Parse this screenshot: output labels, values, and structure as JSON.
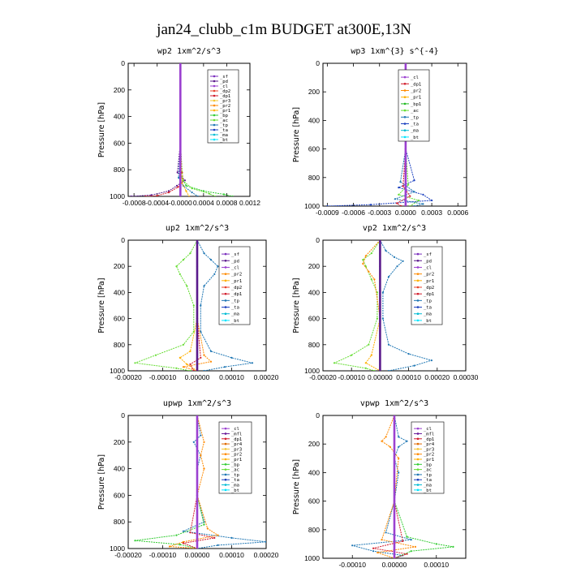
{
  "figure_title": "jan24_clubb_c1m  BUDGET at300E,13N",
  "colors": {
    "_sf": "#7b2fbe",
    "_pd": "#5a1a8c",
    "_cl": "#9b40d0",
    "_mfl": "#6a1b9a",
    "_dp1": "#d11a2a",
    "_dp2": "#e8402a",
    "_dp3": "#c62828",
    "_pr1": "#ffb000",
    "_pr2": "#ff8a00",
    "_pr3": "#f4c430",
    "_pr4": "#e06a00",
    "_bp": "#33cc33",
    "_bp1": "#22bb22",
    "_ac": "#66dd33",
    "_tp": "#1f77b4",
    "_ta": "#1a3fbf",
    "_ma": "#00bcd4",
    "_bt": "#00e5ff"
  },
  "chart_data": [
    {
      "type": "line",
      "title": "wp2  1xm^2/s^3",
      "ylabel": "Pressure [hPa]",
      "ylim": [
        1000,
        0
      ],
      "yticks": [
        0,
        200,
        400,
        600,
        800,
        1000
      ],
      "xlim": [
        -0.0009,
        0.0012
      ],
      "xticks": [
        -0.0008,
        -0.0004,
        0.0,
        0.0004,
        0.0008,
        0.0012
      ],
      "xticklabels": [
        "-0.0008",
        "-0.0004",
        "-0.0000",
        "0.0004",
        "0.0008",
        "0.0012"
      ],
      "legend": [
        "_sf",
        "_pd",
        "_cl",
        "_dp2",
        "_dp1",
        "_pr3",
        "_pr2",
        "_pr1",
        "_bp",
        "_ac",
        "_tp",
        "_ta",
        "_ma",
        "_bt"
      ],
      "legend_position": "top-right",
      "series": [
        {
          "name": "_pd",
          "p": [
            0,
            150,
            600,
            820,
            880,
            920,
            960,
            990,
            1000
          ],
          "v": [
            0,
            0,
            0,
            -5e-05,
            8e-05,
            -6e-05,
            -0.0002,
            -0.0005,
            -0.00085
          ]
        },
        {
          "name": "_dp1",
          "p": [
            0,
            600,
            820,
            880,
            930,
            970,
            995,
            1000
          ],
          "v": [
            0,
            0,
            3e-05,
            5e-05,
            -4e-05,
            -0.0002,
            -0.0004,
            -0.0006
          ]
        },
        {
          "name": "_bp",
          "p": [
            0,
            600,
            850,
            920,
            960,
            985,
            1000
          ],
          "v": [
            0,
            0,
            2e-05,
            0.0001,
            0.0004,
            0.00075,
            0.0009
          ]
        },
        {
          "name": "_ac",
          "p": [
            0,
            600,
            880,
            940,
            980,
            1000
          ],
          "v": [
            0,
            0,
            4e-05,
            0.0002,
            0.0005,
            0.0006
          ]
        },
        {
          "name": "_tp",
          "p": [
            0,
            600,
            860,
            920,
            970,
            1000
          ],
          "v": [
            0,
            0,
            -3e-05,
            5e-05,
            0.0002,
            0.0003
          ]
        },
        {
          "name": "_pr1",
          "p": [
            0,
            600,
            900,
            960,
            1000
          ],
          "v": [
            0,
            0,
            3e-05,
            0.0001,
            0.00015
          ]
        },
        {
          "name": "_cl",
          "p": [
            0,
            200,
            400,
            600,
            800,
            1000
          ],
          "v": [
            0,
            0,
            0,
            0,
            0,
            0
          ]
        }
      ]
    },
    {
      "type": "line",
      "title": "wp3  1xm^{3} s^{-4}",
      "ylabel": "Pressure [hPa]",
      "ylim": [
        1000,
        0
      ],
      "yticks": [
        0,
        200,
        400,
        600,
        800,
        1000
      ],
      "xlim": [
        -0.00095,
        0.0007
      ],
      "xticks": [
        -0.0009,
        -0.0006,
        -0.0003,
        0.0,
        0.0003,
        0.0006
      ],
      "xticklabels": [
        "-0.0009",
        "-0.0006",
        "-0.0003",
        "0.0000",
        "0.0003",
        "0.0006"
      ],
      "legend": [
        "_cl",
        "_dp1",
        "_pr2",
        "_pr1",
        "_bp1",
        "_ac",
        "_tp",
        "_ta",
        "_ma",
        "_bt"
      ],
      "legend_position": "top-right",
      "series": [
        {
          "name": "_ta",
          "p": [
            0,
            150,
            300,
            600,
            820,
            870,
            920,
            960,
            990,
            1000
          ],
          "v": [
            0,
            2e-05,
            -2e-05,
            0,
            0.0001,
            -8e-05,
            0.0002,
            0.0003,
            -0.0004,
            -0.0009
          ]
        },
        {
          "name": "_tp",
          "p": [
            0,
            600,
            830,
            900,
            950,
            985,
            1000
          ],
          "v": [
            0,
            0,
            -6e-05,
            0.0001,
            -0.00012,
            0.0002,
            0.0001
          ]
        },
        {
          "name": "_ac",
          "p": [
            0,
            600,
            850,
            920,
            960,
            1000
          ],
          "v": [
            0,
            0,
            3e-05,
            -8e-05,
            0.00015,
            5e-05
          ]
        },
        {
          "name": "_dp1",
          "p": [
            0,
            600,
            860,
            930,
            980,
            1000
          ],
          "v": [
            0,
            0,
            -3e-05,
            5e-05,
            -0.0001,
            -5e-05
          ]
        },
        {
          "name": "_cl",
          "p": [
            0,
            200,
            400,
            600,
            800,
            1000
          ],
          "v": [
            0,
            0,
            0,
            0,
            0,
            0
          ]
        }
      ]
    },
    {
      "type": "line",
      "title": "up2  1xm^2/s^3",
      "ylabel": "Pressure [hPa]",
      "ylim": [
        1000,
        0
      ],
      "yticks": [
        0,
        200,
        400,
        600,
        800,
        1000
      ],
      "xlim": [
        -0.0002,
        0.0002
      ],
      "xticks": [
        -0.0002,
        -0.0001,
        0.0,
        0.0001,
        0.0002
      ],
      "xticklabels": [
        "-0.00020",
        "-0.00010",
        "0.00000",
        "0.00010",
        "0.00020"
      ],
      "legend": [
        "_sf",
        "_pd",
        "_cl",
        "_pr2",
        "_pr1",
        "_dp2",
        "_dp1",
        "_tp",
        "_ta",
        "_ma",
        "_bt"
      ],
      "legend_position": "top-right",
      "series": [
        {
          "name": "_tp",
          "p": [
            0,
            100,
            150,
            200,
            260,
            350,
            500,
            700,
            850,
            900,
            940,
            970,
            1000
          ],
          "v": [
            0,
            2e-05,
            4e-05,
            6e-05,
            5e-05,
            2e-05,
            1e-05,
            1e-05,
            4e-05,
            0.0001,
            0.00016,
            8e-05,
            2e-05
          ]
        },
        {
          "name": "_ac",
          "p": [
            0,
            100,
            150,
            200,
            260,
            350,
            500,
            700,
            800,
            880,
            940,
            980,
            1000
          ],
          "v": [
            0,
            -2e-05,
            -4e-05,
            -6e-05,
            -5e-05,
            -3e-05,
            -1e-05,
            -1e-05,
            -4e-05,
            -0.00012,
            -0.00018,
            -6e-05,
            -2e-05
          ]
        },
        {
          "name": "_pr1",
          "p": [
            0,
            600,
            850,
            900,
            950,
            1000
          ],
          "v": [
            0,
            0,
            -2e-05,
            -5e-05,
            -3e-05,
            0
          ]
        },
        {
          "name": "_pr2",
          "p": [
            0,
            600,
            880,
            930,
            970,
            1000
          ],
          "v": [
            0,
            0,
            2e-05,
            4e-05,
            -4e-05,
            0
          ]
        },
        {
          "name": "_dp1",
          "p": [
            0,
            600,
            900,
            950,
            1000
          ],
          "v": [
            0,
            0,
            1e-05,
            -2e-05,
            -1e-05
          ]
        },
        {
          "name": "_pd",
          "p": [
            0,
            200,
            400,
            600,
            800,
            1000
          ],
          "v": [
            0,
            0,
            0,
            0,
            0,
            0
          ]
        }
      ]
    },
    {
      "type": "line",
      "title": "vp2  1xm^2/s^3",
      "ylabel": "Pressure [hPa]",
      "ylim": [
        1000,
        0
      ],
      "yticks": [
        0,
        200,
        400,
        600,
        800,
        1000
      ],
      "xlim": [
        -0.0002,
        0.0003
      ],
      "xticks": [
        -0.0002,
        -0.0001,
        0.0,
        0.0001,
        0.0002,
        0.0003
      ],
      "xticklabels": [
        "-0.00020",
        "-0.00010",
        "0.00000",
        "0.00010",
        "0.00020",
        "0.00030"
      ],
      "legend": [
        "_sf",
        "_pd",
        "_cl",
        "_pr2",
        "_pr1",
        "_dp2",
        "_dp1",
        "_tp",
        "_ta",
        "_ma",
        "_bt"
      ],
      "legend_position": "top-right",
      "series": [
        {
          "name": "_tp",
          "p": [
            0,
            80,
            130,
            160,
            200,
            280,
            400,
            600,
            800,
            870,
            920,
            960,
            1000
          ],
          "v": [
            0,
            2e-05,
            5e-05,
            8e-05,
            6e-05,
            3e-05,
            1e-05,
            1e-05,
            3e-05,
            0.0001,
            0.00018,
            0.00012,
            3e-05
          ]
        },
        {
          "name": "_ac",
          "p": [
            0,
            100,
            150,
            200,
            300,
            400,
            600,
            800,
            880,
            940,
            980,
            1000
          ],
          "v": [
            0,
            -3e-05,
            -6e-05,
            -5e-05,
            -3e-05,
            -1e-05,
            -1e-05,
            -4e-05,
            -0.0001,
            -0.00016,
            -5e-05,
            -2e-05
          ]
        },
        {
          "name": "_pr2",
          "p": [
            0,
            120,
            180,
            240,
            300,
            600,
            1000
          ],
          "v": [
            0,
            -5e-05,
            -6e-05,
            -4e-05,
            -2e-05,
            0,
            0
          ]
        },
        {
          "name": "_pr1",
          "p": [
            0,
            600,
            880,
            940,
            1000
          ],
          "v": [
            0,
            0,
            -3e-05,
            -5e-05,
            0
          ]
        },
        {
          "name": "_pd",
          "p": [
            0,
            200,
            400,
            600,
            800,
            1000
          ],
          "v": [
            0,
            0,
            0,
            0,
            0,
            0
          ]
        }
      ]
    },
    {
      "type": "line",
      "title": "upwp  1xm^2/s^3",
      "ylabel": "Pressure [hPa]",
      "ylim": [
        1000,
        0
      ],
      "yticks": [
        0,
        200,
        400,
        600,
        800,
        1000
      ],
      "xlim": [
        -0.0002,
        0.0002
      ],
      "xticks": [
        -0.0002,
        -0.0001,
        0.0,
        0.0001,
        0.0002
      ],
      "xticklabels": [
        "-0.00020",
        "-0.00010",
        "0.00000",
        "0.00010",
        "0.00020"
      ],
      "legend": [
        "_cl",
        "_mfl",
        "_dp1",
        "_pr4",
        "_pr3",
        "_pr2",
        "_pr1",
        "_bp",
        "_ac",
        "_tp",
        "_ta",
        "_ma",
        "_bt"
      ],
      "legend_position": "top-right",
      "series": [
        {
          "name": "_tp",
          "p": [
            0,
            150,
            200,
            300,
            400,
            600,
            800,
            870,
            920,
            950,
            975,
            1000
          ],
          "v": [
            0,
            1e-05,
            -1e-05,
            1e-05,
            0,
            0,
            2e-05,
            -4e-05,
            0.0001,
            0.0002,
            6e-05,
            0
          ]
        },
        {
          "name": "_bp",
          "p": [
            0,
            600,
            820,
            900,
            940,
            970,
            1000
          ],
          "v": [
            0,
            0,
            2e-05,
            -6e-05,
            -0.00018,
            -5e-05,
            0
          ]
        },
        {
          "name": "_pr2",
          "p": [
            0,
            200,
            300,
            400,
            600,
            850,
            900,
            950,
            985,
            1000
          ],
          "v": [
            0,
            2e-05,
            1e-05,
            2e-05,
            0,
            3e-05,
            6e-05,
            -4e-05,
            -8e-05,
            0
          ]
        },
        {
          "name": "_dp1",
          "p": [
            0,
            600,
            880,
            920,
            960,
            1000
          ],
          "v": [
            0,
            0,
            -2e-05,
            5e-05,
            -4e-05,
            0
          ]
        },
        {
          "name": "_cl",
          "p": [
            0,
            200,
            400,
            600,
            800,
            1000
          ],
          "v": [
            0,
            0,
            0,
            0,
            0,
            0
          ]
        }
      ]
    },
    {
      "type": "line",
      "title": "vpwp  1xm^2/s^3",
      "ylabel": "Pressure [hPa]",
      "ylim": [
        1000,
        0
      ],
      "yticks": [
        0,
        200,
        400,
        600,
        800,
        1000
      ],
      "xlim": [
        -0.00017,
        0.00017
      ],
      "xticks": [
        -0.0001,
        0.0,
        0.0001
      ],
      "xticklabels": [
        "-0.00010",
        "0.00000",
        "0.00010"
      ],
      "legend": [
        "_cl",
        "_mfl",
        "_dp1",
        "_pr4",
        "_pr3",
        "_pr2",
        "_pr1",
        "_bp",
        "_ac",
        "_tp",
        "_ta",
        "_ma",
        "_bt"
      ],
      "legend_position": "top-right",
      "series": [
        {
          "name": "_tp",
          "p": [
            0,
            150,
            180,
            220,
            300,
            400,
            600,
            820,
            870,
            910,
            950,
            980,
            1000
          ],
          "v": [
            0,
            1e-05,
            3e-05,
            1e-05,
            0,
            1e-05,
            0,
            -2e-05,
            4e-05,
            -0.0001,
            -5e-05,
            2e-05,
            0
          ]
        },
        {
          "name": "_bp",
          "p": [
            0,
            600,
            850,
            900,
            920,
            950,
            1000
          ],
          "v": [
            0,
            0,
            3e-05,
            0.0001,
            0.00014,
            4e-05,
            0
          ]
        },
        {
          "name": "_pr2",
          "p": [
            0,
            150,
            180,
            220,
            300,
            600,
            870,
            920,
            960,
            1000
          ],
          "v": [
            0,
            -2e-05,
            -3e-05,
            -1e-05,
            1e-05,
            0,
            -3e-05,
            5e-05,
            -4e-05,
            0
          ]
        },
        {
          "name": "_dp1",
          "p": [
            0,
            600,
            880,
            930,
            970,
            1000
          ],
          "v": [
            0,
            0,
            2e-05,
            -5e-05,
            3e-05,
            0
          ]
        },
        {
          "name": "_cl",
          "p": [
            0,
            200,
            400,
            600,
            800,
            1000
          ],
          "v": [
            0,
            0,
            0,
            0,
            0,
            0
          ]
        }
      ]
    }
  ]
}
